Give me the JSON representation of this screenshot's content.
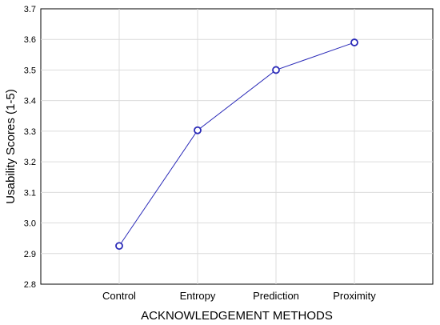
{
  "chart_data": {
    "type": "line",
    "title": "",
    "xlabel": "ACKNOWLEDGEMENT METHODS",
    "ylabel": "Usability Scores (1-5)",
    "categories": [
      "Control",
      "Entropy",
      "Prediction",
      "Proximity"
    ],
    "series": [
      {
        "values": [
          2.925,
          3.303,
          3.5,
          3.59
        ]
      }
    ],
    "ylim": [
      2.8,
      3.7
    ],
    "yticks": [
      "2.8",
      "2.9",
      "3.0",
      "3.1",
      "3.2",
      "3.3",
      "3.4",
      "3.5",
      "3.6",
      "3.7"
    ],
    "grid": true,
    "line_color": "#2b2bb8",
    "marker": "open-circle"
  }
}
